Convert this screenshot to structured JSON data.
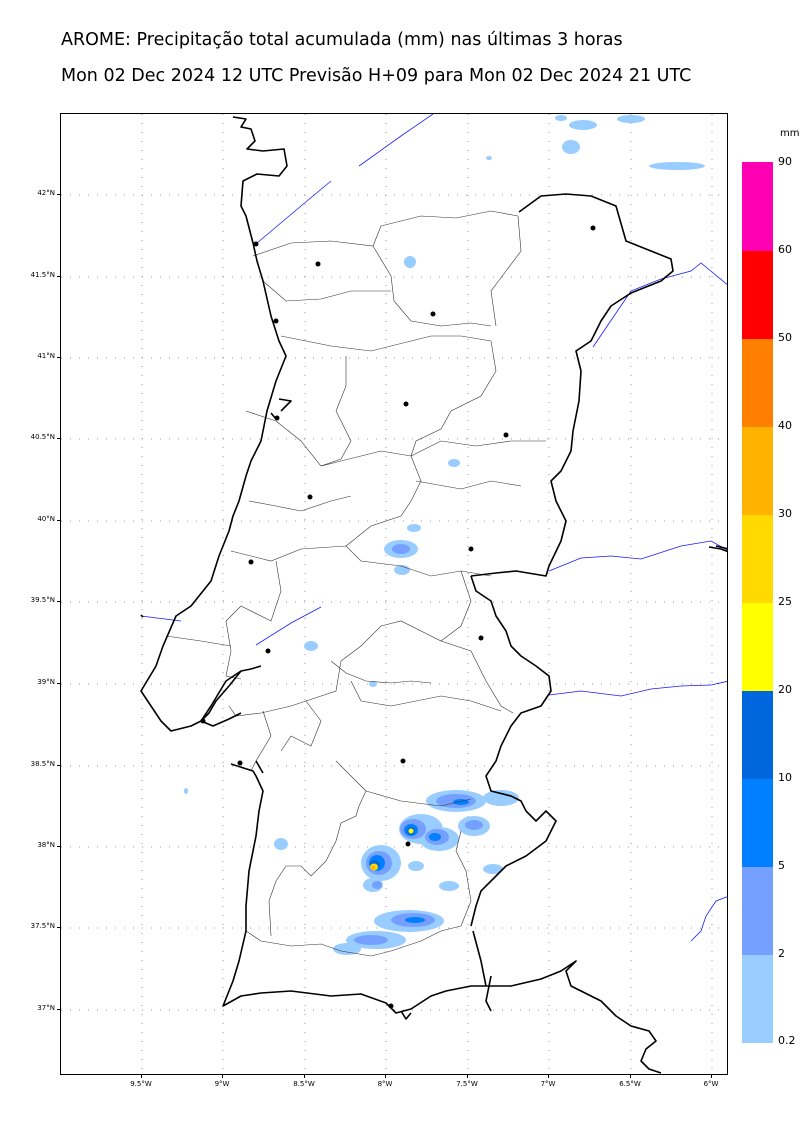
{
  "header": {
    "title_line1": "AROME: Precipitação total acumulada (mm) nas últimas 3 horas",
    "title_line2": "Mon 02 Dec 2024 12 UTC Previsão H+09 para Mon 02 Dec 2024 21 UTC"
  },
  "map": {
    "region": "Portugal (mainland)",
    "lon_range": [
      -10.0,
      -5.9
    ],
    "lat_range": [
      36.6,
      42.5
    ],
    "lat_ticks": [
      "42°N",
      "41.5°N",
      "41°N",
      "40.5°N",
      "40°N",
      "39.5°N",
      "39°N",
      "38.5°N",
      "38°N",
      "37.5°N",
      "37°N"
    ],
    "lon_ticks": [
      "9.5°W",
      "9°W",
      "8.5°W",
      "8°W",
      "7.5°W",
      "7°W",
      "6.5°W",
      "6°W"
    ],
    "gridlines": "dotted",
    "district_capitals": "black dots",
    "colors": {
      "coastline": "#000000",
      "borders": "#1a1aff",
      "districts": "#333333"
    }
  },
  "colorbar": {
    "unit": "mm",
    "levels": [
      "0.2",
      "2",
      "5",
      "10",
      "20",
      "25",
      "30",
      "40",
      "50",
      "60",
      "90"
    ],
    "colors": [
      "#99ccff",
      "#76a0ff",
      "#0080ff",
      "#0066dd",
      "#ffff00",
      "#ffd900",
      "#ffb300",
      "#ff8000",
      "#ff0000",
      "#ff00b3"
    ]
  }
}
